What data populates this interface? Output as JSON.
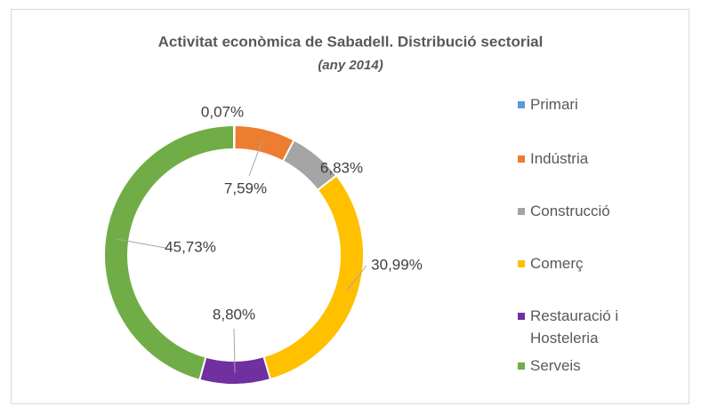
{
  "chart_data": {
    "type": "donut",
    "title": "Activitat econòmica de Sabadell. Distribució sectorial",
    "subtitle": "(any 2014)",
    "categories": [
      "Primari",
      "Indústria",
      "Construcció",
      "Comerç",
      "Restauració i Hosteleria",
      "Serveis"
    ],
    "values": [
      0.07,
      7.59,
      6.83,
      30.99,
      8.8,
      45.73
    ],
    "value_labels": [
      "0,07%",
      "7,59%",
      "6,83%",
      "30,99%",
      "8,80%",
      "45,73%"
    ],
    "colors": [
      "#5b9bd5",
      "#ed7d31",
      "#a5a5a5",
      "#ffc000",
      "#7030a0",
      "#70ad47"
    ],
    "legend": "right"
  }
}
